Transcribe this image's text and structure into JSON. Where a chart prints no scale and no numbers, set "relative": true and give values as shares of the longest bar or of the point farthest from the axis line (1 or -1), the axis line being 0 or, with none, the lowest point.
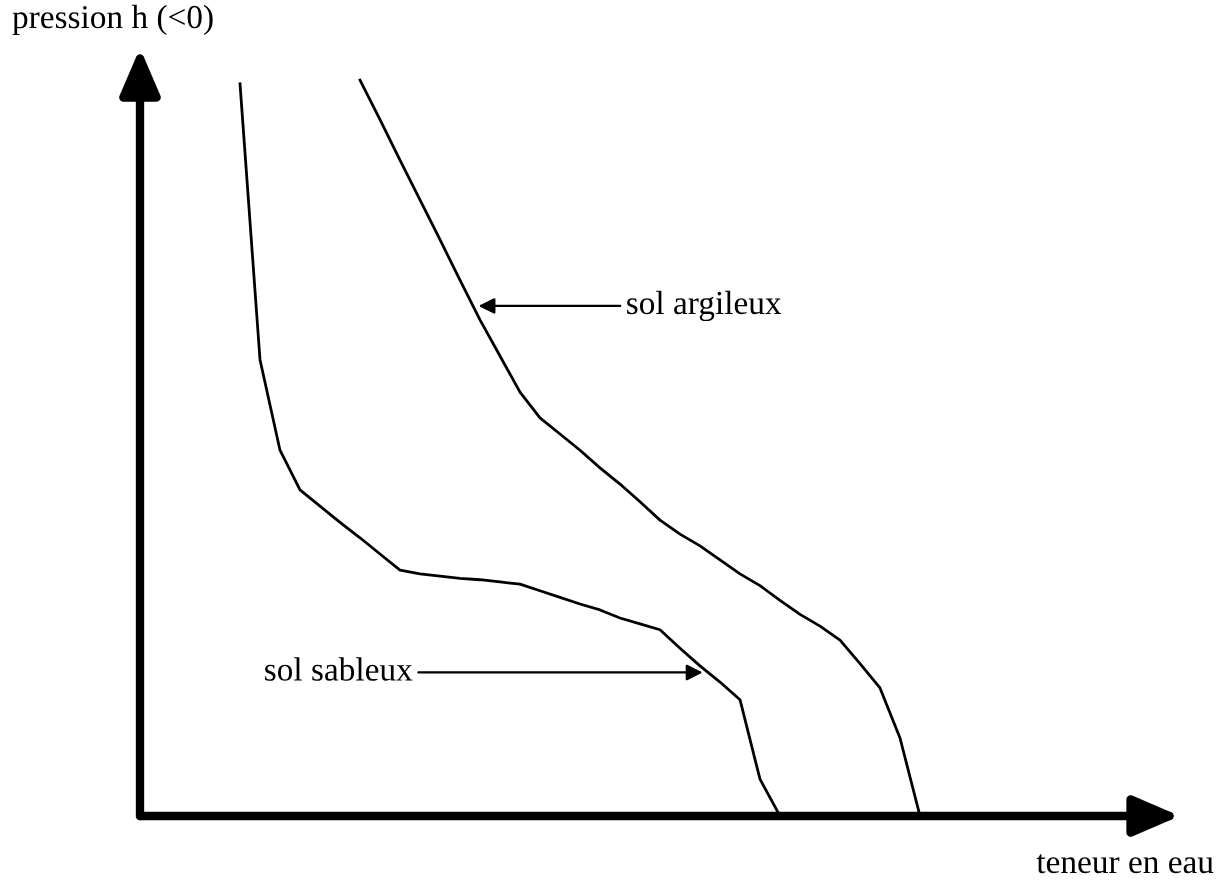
{
  "chart_data": {
    "type": "line",
    "xlabel": "teneur en eau",
    "ylabel": "pression h (<0)",
    "relative": true,
    "marker": "none",
    "line_style": "solid",
    "categories": [
      null,
      null,
      null,
      null,
      null,
      null,
      null,
      null,
      null,
      null,
      null,
      null,
      null,
      null,
      null,
      null,
      null,
      null,
      null,
      null,
      null,
      null,
      null,
      null,
      null,
      null,
      null,
      null,
      null,
      null,
      null,
      null,
      null,
      null,
      null,
      null,
      null,
      null,
      null,
      null,
      null,
      null,
      null,
      null,
      null,
      null,
      null,
      null,
      null,
      null,
      null,
      null,
      null
    ],
    "series": [
      {
        "color": "#000000",
        "values": [
          null,
          null,
          null,
          null,
          null,
          0.995,
          0.62,
          0.497,
          0.443,
          0.421,
          0.399,
          0.378,
          0.356,
          0.334,
          0.329,
          0.326,
          0.323,
          0.321,
          0.318,
          0.315,
          0.306,
          0.297,
          0.288,
          0.28,
          0.269,
          0.261,
          0.253,
          0.228,
          0.204,
          0.182,
          0.158,
          0.05,
          0,
          null,
          null,
          null,
          null,
          null,
          null,
          null,
          null,
          null,
          null,
          null,
          null,
          null,
          null,
          null,
          null,
          null,
          null,
          null,
          null
        ]
      },
      {
        "color": "#000000",
        "values": [
          null,
          null,
          null,
          null,
          null,
          null,
          null,
          null,
          null,
          null,
          null,
          1.0,
          0.946,
          0.891,
          0.837,
          0.783,
          0.728,
          0.674,
          0.625,
          0.576,
          0.541,
          0.519,
          0.497,
          0.473,
          0.451,
          0.427,
          0.402,
          0.383,
          0.367,
          0.348,
          0.329,
          0.313,
          0.293,
          0.274,
          0.258,
          0.239,
          0.207,
          0.174,
          0.106,
          0,
          null,
          null,
          null,
          null,
          null,
          null,
          null,
          null,
          null,
          null,
          null,
          null,
          null
        ]
      }
    ],
    "annotations": [
      "sol sableux",
      "sol argileux"
    ]
  }
}
